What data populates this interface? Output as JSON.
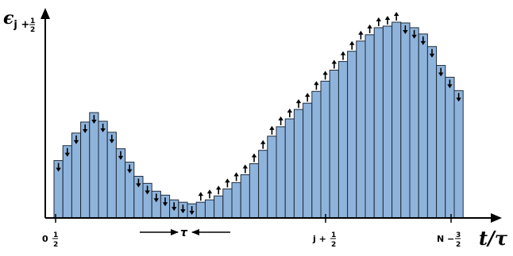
{
  "chart_data": {
    "type": "bar",
    "colors": {
      "bar_fill": "#8fb4dc",
      "bar_stroke": "#1e2a3a",
      "ink": "#000000"
    },
    "values": [
      73,
      92,
      108,
      122,
      134,
      123,
      109,
      88,
      71,
      53,
      44,
      34,
      29,
      23,
      20,
      18,
      20,
      23,
      28,
      37,
      45,
      55,
      69,
      86,
      104,
      116,
      126,
      138,
      146,
      161,
      174,
      188,
      199,
      212,
      225,
      233,
      242,
      244,
      249,
      248,
      242,
      234,
      218,
      194,
      179,
      162
    ],
    "arrows": [
      "down",
      "down",
      "down",
      "down",
      "down",
      "down",
      "down",
      "down",
      "down",
      "down",
      "down",
      "down",
      "down",
      "down",
      "down",
      "down",
      "up",
      "up",
      "up",
      "up",
      "up",
      "up",
      "up",
      "up",
      "up",
      "up",
      "up",
      "up",
      "up",
      "up",
      "up",
      "up",
      "up",
      "up",
      "up",
      "up",
      "up",
      "up",
      "up",
      "down",
      "down",
      "down",
      "down",
      "down",
      "down",
      "down"
    ],
    "ylim": [
      0,
      250
    ],
    "y_axis_label": {
      "main": "ϵ",
      "sub_prefix": "j + ",
      "sub_num": "1",
      "sub_den": "2"
    },
    "x_axis_label": "t/τ",
    "tick_labels": [
      {
        "prefix": "0",
        "num": "1",
        "den": "2"
      },
      {
        "prefix": "j + ",
        "num": "1",
        "den": "2"
      },
      {
        "prefix": "N − ",
        "num": "3",
        "den": "2"
      }
    ],
    "tau_marker": {
      "label": "τ"
    }
  }
}
